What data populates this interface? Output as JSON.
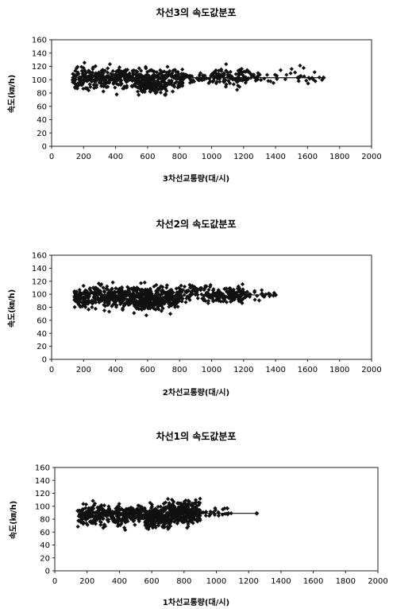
{
  "chart_data": [
    {
      "type": "scatter",
      "title": "차선3의 속도값분포",
      "xlabel": "3차선교통량(대/시)",
      "ylabel": "속도(㎞/h)",
      "xlim": [
        0,
        2000
      ],
      "ylim": [
        0,
        160
      ],
      "x_ticks": [
        "0",
        "200",
        "400",
        "600",
        "800",
        "1000",
        "1200",
        "1400",
        "1600",
        "1800",
        "2000"
      ],
      "y_ticks": [
        "0",
        "20",
        "40",
        "60",
        "80",
        "100",
        "120",
        "140",
        "160"
      ],
      "grid": false,
      "trend_line": {
        "x": [
          800,
          1700
        ],
        "y": [
          103,
          103
        ]
      },
      "clusters": [
        {
          "x": [
            130,
            820
          ],
          "y_center": 102,
          "y_spread": 13,
          "count": 520
        },
        {
          "x": [
            530,
            720
          ],
          "y_center": 88,
          "y_spread": 10,
          "count": 90
        },
        {
          "x": [
            800,
            1000
          ],
          "y_center": 103,
          "y_spread": 7,
          "count": 50
        },
        {
          "x": [
            1000,
            1300
          ],
          "y_center": 104,
          "y_spread": 12,
          "count": 120
        },
        {
          "x": [
            1300,
            1700
          ],
          "y_center": 106,
          "y_spread": 10,
          "count": 35
        }
      ],
      "accent_color": "#111111"
    },
    {
      "type": "scatter",
      "title": "차선2의 속도값분포",
      "xlabel": "2차선교통량(대/시)",
      "ylabel": "속도(㎞/h)",
      "xlim": [
        0,
        2000
      ],
      "ylim": [
        0,
        160
      ],
      "x_ticks": [
        "0",
        "200",
        "400",
        "600",
        "800",
        "1000",
        "1200",
        "1400",
        "1600",
        "1800",
        "2000"
      ],
      "y_ticks": [
        "0",
        "20",
        "40",
        "60",
        "80",
        "100",
        "120",
        "140",
        "160"
      ],
      "grid": false,
      "trend_line": {
        "x": [
          1100,
          1400
        ],
        "y": [
          99,
          99
        ]
      },
      "clusters": [
        {
          "x": [
            140,
            820
          ],
          "y_center": 96,
          "y_spread": 15,
          "count": 620
        },
        {
          "x": [
            530,
            720
          ],
          "y_center": 85,
          "y_spread": 10,
          "count": 100
        },
        {
          "x": [
            820,
            980
          ],
          "y_center": 102,
          "y_spread": 12,
          "count": 60
        },
        {
          "x": [
            980,
            1200
          ],
          "y_center": 99,
          "y_spread": 11,
          "count": 140
        },
        {
          "x": [
            1200,
            1400
          ],
          "y_center": 99,
          "y_spread": 8,
          "count": 25
        }
      ],
      "accent_color": "#111111"
    },
    {
      "type": "scatter",
      "title": "차선1의 속도값분포",
      "xlabel": "1차선교통량(대/시)",
      "ylabel": "속도(㎞/h)",
      "xlim": [
        0,
        2000
      ],
      "ylim": [
        0,
        160
      ],
      "x_ticks": [
        "0",
        "200",
        "400",
        "600",
        "800",
        "1000",
        "1200",
        "1400",
        "1600",
        "1800",
        "2000"
      ],
      "y_ticks": [
        "0",
        "20",
        "40",
        "60",
        "80",
        "100",
        "120",
        "140",
        "160"
      ],
      "grid": false,
      "trend_line": {
        "x": [
          900,
          1250
        ],
        "y": [
          89,
          89
        ]
      },
      "clusters": [
        {
          "x": [
            140,
            900
          ],
          "y_center": 87,
          "y_spread": 13,
          "count": 720
        },
        {
          "x": [
            560,
            720
          ],
          "y_center": 76,
          "y_spread": 9,
          "count": 90
        },
        {
          "x": [
            700,
            900
          ],
          "y_center": 98,
          "y_spread": 12,
          "count": 80
        },
        {
          "x": [
            900,
            1100
          ],
          "y_center": 90,
          "y_spread": 7,
          "count": 25
        }
      ],
      "accent_color": "#111111"
    }
  ]
}
